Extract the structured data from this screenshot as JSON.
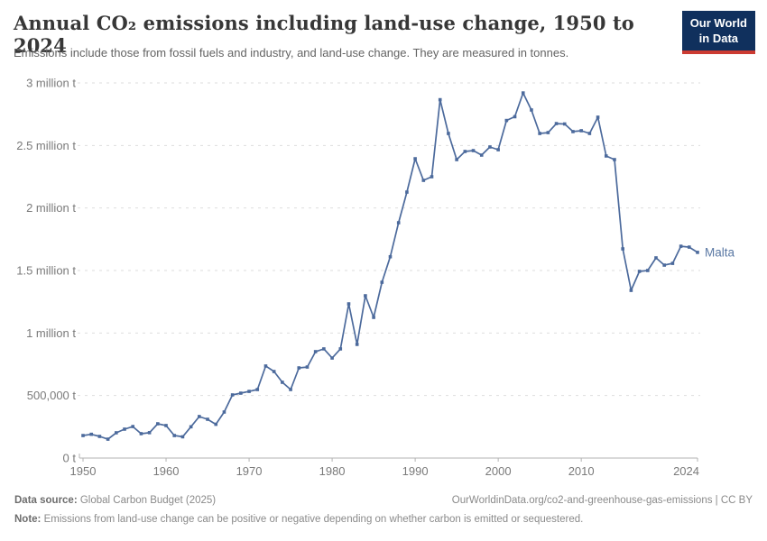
{
  "header": {
    "title": "Annual CO₂ emissions including land-use change, 1950 to 2024",
    "subtitle": "Emissions include those from fossil fuels and industry, and land-use change. They are measured in tonnes.",
    "logo": {
      "line1": "Our World",
      "line2": "in Data"
    }
  },
  "chart_data": {
    "type": "line",
    "title": "Annual CO₂ emissions including land-use change, 1950 to 2024",
    "xlabel": "",
    "ylabel": "",
    "xlim": [
      1950,
      2024
    ],
    "ylim": [
      0,
      3000000
    ],
    "grid": "horizontal-dashed",
    "legend_position": "end-of-line-label",
    "x_ticks": [
      1950,
      1960,
      1970,
      1980,
      1990,
      2000,
      2010,
      2024
    ],
    "y_ticks": [
      {
        "value": 0,
        "label": "0 t"
      },
      {
        "value": 500000,
        "label": "500,000 t"
      },
      {
        "value": 1000000,
        "label": "1 million t"
      },
      {
        "value": 1500000,
        "label": "1.5 million t"
      },
      {
        "value": 2000000,
        "label": "2 million t"
      },
      {
        "value": 2500000,
        "label": "2.5 million t"
      },
      {
        "value": 3000000,
        "label": "3 million t"
      }
    ],
    "series": [
      {
        "name": "Malta",
        "color": "#4c6a9c",
        "x": [
          1950,
          1951,
          1952,
          1953,
          1954,
          1955,
          1956,
          1957,
          1958,
          1959,
          1960,
          1961,
          1962,
          1963,
          1964,
          1965,
          1966,
          1967,
          1968,
          1969,
          1970,
          1971,
          1972,
          1973,
          1974,
          1975,
          1976,
          1977,
          1978,
          1979,
          1980,
          1981,
          1982,
          1983,
          1984,
          1985,
          1986,
          1987,
          1988,
          1989,
          1990,
          1991,
          1992,
          1993,
          1994,
          1995,
          1996,
          1997,
          1998,
          1999,
          2000,
          2001,
          2002,
          2003,
          2004,
          2005,
          2006,
          2007,
          2008,
          2009,
          2010,
          2011,
          2012,
          2013,
          2014,
          2015,
          2016,
          2017,
          2018,
          2019,
          2020,
          2021,
          2022,
          2023,
          2024
        ],
        "values": [
          180000,
          190000,
          173000,
          151000,
          202000,
          231000,
          252000,
          195000,
          203000,
          274000,
          260000,
          180000,
          170000,
          250000,
          332000,
          310000,
          270000,
          368000,
          505000,
          519000,
          533000,
          548000,
          736000,
          692000,
          606000,
          548000,
          721000,
          728000,
          851000,
          873000,
          800000,
          873000,
          1233000,
          909000,
          1298000,
          1125000,
          1406000,
          1610000,
          1882000,
          2127000,
          2394000,
          2221000,
          2250000,
          2866000,
          2596000,
          2387000,
          2452000,
          2459000,
          2423000,
          2488000,
          2466000,
          2700000,
          2730000,
          2920000,
          2784000,
          2596000,
          2603000,
          2675000,
          2672000,
          2611000,
          2618000,
          2596000,
          2726000,
          2416000,
          2387000,
          1673000,
          1341000,
          1493000,
          1500000,
          1601000,
          1543000,
          1557000,
          1694000,
          1687000,
          1645000
        ]
      }
    ],
    "entity_label": "Malta"
  },
  "footer": {
    "data_source_label": "Data source:",
    "data_source_value": " Global Carbon Budget (2025)",
    "citation": "OurWorldinData.org/co2-and-greenhouse-gas-emissions | CC BY",
    "note_label": "Note:",
    "note_value": " Emissions from land-use change can be positive or negative depending on whether carbon is emitted or sequestered."
  },
  "colors": {
    "line": "#4c6a9c",
    "entity_label": "#5b79a4",
    "axis_text": "#7a7a7a",
    "gridline": "#dedede",
    "axis_line": "#b3b3b3",
    "logo_bg": "#10305d",
    "logo_accent": "#cc3b32"
  }
}
